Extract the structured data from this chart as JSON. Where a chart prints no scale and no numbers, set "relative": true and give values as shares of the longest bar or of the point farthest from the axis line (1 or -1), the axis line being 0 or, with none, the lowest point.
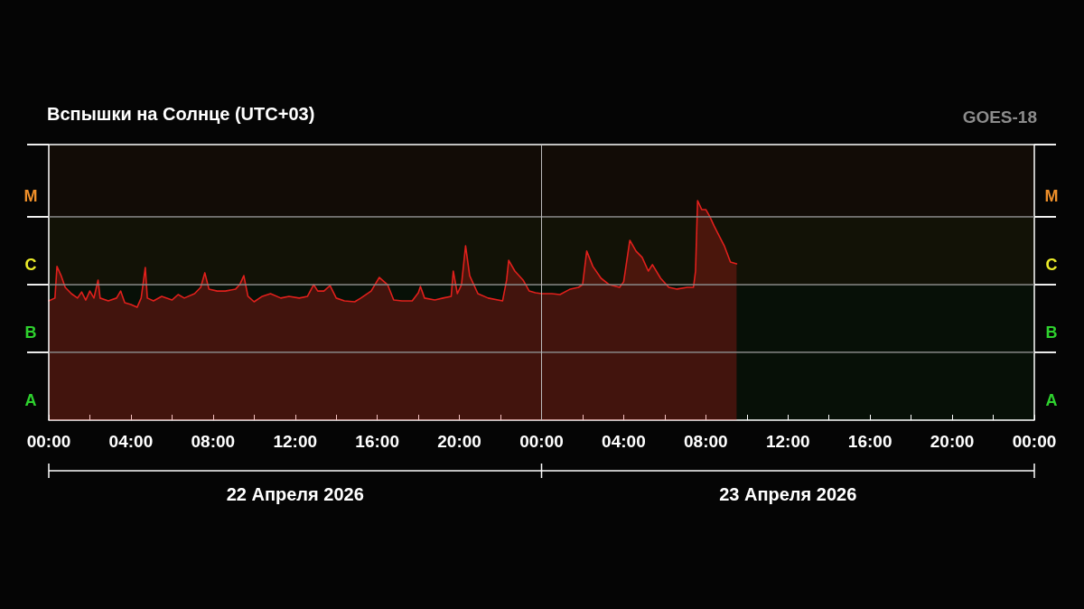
{
  "chart_data": {
    "type": "area",
    "title": "Вспышки на Солнце (UTC+03)",
    "relative": true,
    "annotations": [
      "GOES-18",
      "22 Апреля 2026",
      "23 Апреля 2026"
    ],
    "x": [
      "2026-04-22T00:00",
      "2026-04-22T00:18",
      "2026-04-22T00:24",
      "2026-04-22T00:36",
      "2026-04-22T00:48",
      "2026-04-22T01:06",
      "2026-04-22T01:24",
      "2026-04-22T01:36",
      "2026-04-22T01:48",
      "2026-04-22T02:00",
      "2026-04-22T02:12",
      "2026-04-22T02:24",
      "2026-04-22T02:30",
      "2026-04-22T02:54",
      "2026-04-22T03:18",
      "2026-04-22T03:30",
      "2026-04-22T03:42",
      "2026-04-22T04:00",
      "2026-04-22T04:18",
      "2026-04-22T04:30",
      "2026-04-22T04:42",
      "2026-04-22T04:48",
      "2026-04-22T05:06",
      "2026-04-22T05:30",
      "2026-04-22T06:00",
      "2026-04-22T06:18",
      "2026-04-22T06:36",
      "2026-04-22T07:06",
      "2026-04-22T07:24",
      "2026-04-22T07:36",
      "2026-04-22T07:48",
      "2026-04-22T08:12",
      "2026-04-22T08:36",
      "2026-04-22T09:06",
      "2026-04-22T09:18",
      "2026-04-22T09:30",
      "2026-04-22T09:42",
      "2026-04-22T10:00",
      "2026-04-22T10:24",
      "2026-04-22T10:48",
      "2026-04-22T11:18",
      "2026-04-22T11:42",
      "2026-04-22T12:12",
      "2026-04-22T12:36",
      "2026-04-22T12:54",
      "2026-04-22T13:06",
      "2026-04-22T13:24",
      "2026-04-22T13:42",
      "2026-04-22T14:00",
      "2026-04-22T14:24",
      "2026-04-22T14:54",
      "2026-04-22T15:12",
      "2026-04-22T15:42",
      "2026-04-22T16:06",
      "2026-04-22T16:30",
      "2026-04-22T16:48",
      "2026-04-22T17:12",
      "2026-04-22T17:42",
      "2026-04-22T18:00",
      "2026-04-22T18:06",
      "2026-04-22T18:18",
      "2026-04-22T18:48",
      "2026-04-22T19:12",
      "2026-04-22T19:36",
      "2026-04-22T19:42",
      "2026-04-22T19:54",
      "2026-04-22T20:06",
      "2026-04-22T20:18",
      "2026-04-22T20:30",
      "2026-04-22T20:54",
      "2026-04-22T21:24",
      "2026-04-22T22:06",
      "2026-04-22T22:18",
      "2026-04-22T22:24",
      "2026-04-22T22:42",
      "2026-04-22T23:06",
      "2026-04-22T23:24",
      "2026-04-22T23:42",
      "2026-04-23T00:00",
      "2026-04-23T00:30",
      "2026-04-23T00:54",
      "2026-04-23T01:24",
      "2026-04-23T01:48",
      "2026-04-23T02:00",
      "2026-04-23T02:12",
      "2026-04-23T02:30",
      "2026-04-23T02:54",
      "2026-04-23T03:18",
      "2026-04-23T03:48",
      "2026-04-23T04:00",
      "2026-04-23T04:18",
      "2026-04-23T04:36",
      "2026-04-23T04:54",
      "2026-04-23T05:12",
      "2026-04-23T05:24",
      "2026-04-23T05:48",
      "2026-04-23T06:12",
      "2026-04-23T06:36",
      "2026-04-23T07:06",
      "2026-04-23T07:24",
      "2026-04-23T07:30",
      "2026-04-23T07:36",
      "2026-04-23T07:48",
      "2026-04-23T08:00",
      "2026-04-23T08:12",
      "2026-04-23T08:24",
      "2026-04-23T08:54",
      "2026-04-23T09:12",
      "2026-04-23T09:30"
    ],
    "series": [
      {
        "color": "#e0201c",
        "values": [
          0.543,
          0.556,
          0.7,
          0.658,
          0.605,
          0.576,
          0.556,
          0.584,
          0.547,
          0.588,
          0.556,
          0.638,
          0.556,
          0.543,
          0.556,
          0.588,
          0.535,
          0.527,
          0.514,
          0.556,
          0.695,
          0.556,
          0.543,
          0.564,
          0.547,
          0.572,
          0.556,
          0.576,
          0.605,
          0.671,
          0.597,
          0.588,
          0.588,
          0.597,
          0.617,
          0.658,
          0.564,
          0.539,
          0.564,
          0.576,
          0.556,
          0.564,
          0.556,
          0.564,
          0.617,
          0.588,
          0.588,
          0.613,
          0.556,
          0.543,
          0.539,
          0.556,
          0.588,
          0.65,
          0.617,
          0.547,
          0.543,
          0.543,
          0.58,
          0.609,
          0.556,
          0.547,
          0.556,
          0.564,
          0.679,
          0.576,
          0.617,
          0.794,
          0.658,
          0.576,
          0.556,
          0.543,
          0.638,
          0.728,
          0.679,
          0.638,
          0.588,
          0.58,
          0.576,
          0.576,
          0.572,
          0.597,
          0.605,
          0.617,
          0.77,
          0.7,
          0.646,
          0.617,
          0.605,
          0.63,
          0.819,
          0.77,
          0.741,
          0.679,
          0.708,
          0.646,
          0.605,
          0.597,
          0.605,
          0.605,
          0.679,
          1,
          0.959,
          0.959,
          0.926,
          0.885,
          0.794,
          0.72,
          0.712
        ]
      }
    ],
    "xlim": [
      "2026-04-22T00:00",
      "2026-04-24T00:00"
    ],
    "xticks": [
      {
        "value": "2026-04-22T00:00",
        "label": "00:00"
      },
      {
        "value": "2026-04-22T02:00",
        "label": null
      },
      {
        "value": "2026-04-22T04:00",
        "label": "04:00"
      },
      {
        "value": "2026-04-22T06:00",
        "label": null
      },
      {
        "value": "2026-04-22T08:00",
        "label": "08:00"
      },
      {
        "value": "2026-04-22T10:00",
        "label": null
      },
      {
        "value": "2026-04-22T12:00",
        "label": "12:00"
      },
      {
        "value": "2026-04-22T14:00",
        "label": null
      },
      {
        "value": "2026-04-22T16:00",
        "label": "16:00"
      },
      {
        "value": "2026-04-22T18:00",
        "label": null
      },
      {
        "value": "2026-04-22T20:00",
        "label": "20:00"
      },
      {
        "value": "2026-04-22T22:00",
        "label": null
      },
      {
        "value": "2026-04-23T00:00",
        "label": "00:00"
      },
      {
        "value": "2026-04-23T02:00",
        "label": null
      },
      {
        "value": "2026-04-23T04:00",
        "label": "04:00"
      },
      {
        "value": "2026-04-23T06:00",
        "label": null
      },
      {
        "value": "2026-04-23T08:00",
        "label": "08:00"
      },
      {
        "value": "2026-04-23T10:00",
        "label": null
      },
      {
        "value": "2026-04-23T12:00",
        "label": "12:00"
      },
      {
        "value": "2026-04-23T14:00",
        "label": null
      },
      {
        "value": "2026-04-23T16:00",
        "label": "16:00"
      },
      {
        "value": "2026-04-23T18:00",
        "label": null
      },
      {
        "value": "2026-04-23T20:00",
        "label": "20:00"
      },
      {
        "value": "2026-04-23T22:00",
        "label": null
      },
      {
        "value": "2026-04-24T00:00",
        "label": "00:00"
      }
    ],
    "bands": [
      {
        "axis": "y",
        "from": 0,
        "to": 0.309,
        "label": "A",
        "color": "#2ed12e"
      },
      {
        "axis": "y",
        "from": 0.309,
        "to": 0.617,
        "label": "B",
        "color": "#2ed12e"
      },
      {
        "axis": "y",
        "from": 0.617,
        "to": 0.926,
        "label": "C",
        "color": "#ecec2a"
      },
      {
        "axis": "y",
        "from": 0.926,
        "to": 1.255,
        "label": "M",
        "color": "#f0902a"
      }
    ],
    "ref_lines": [
      {
        "axis": "x",
        "value": "2026-04-23T00:00",
        "color": "#bbbbbb"
      }
    ],
    "marker": "none",
    "line_style": "solid"
  }
}
